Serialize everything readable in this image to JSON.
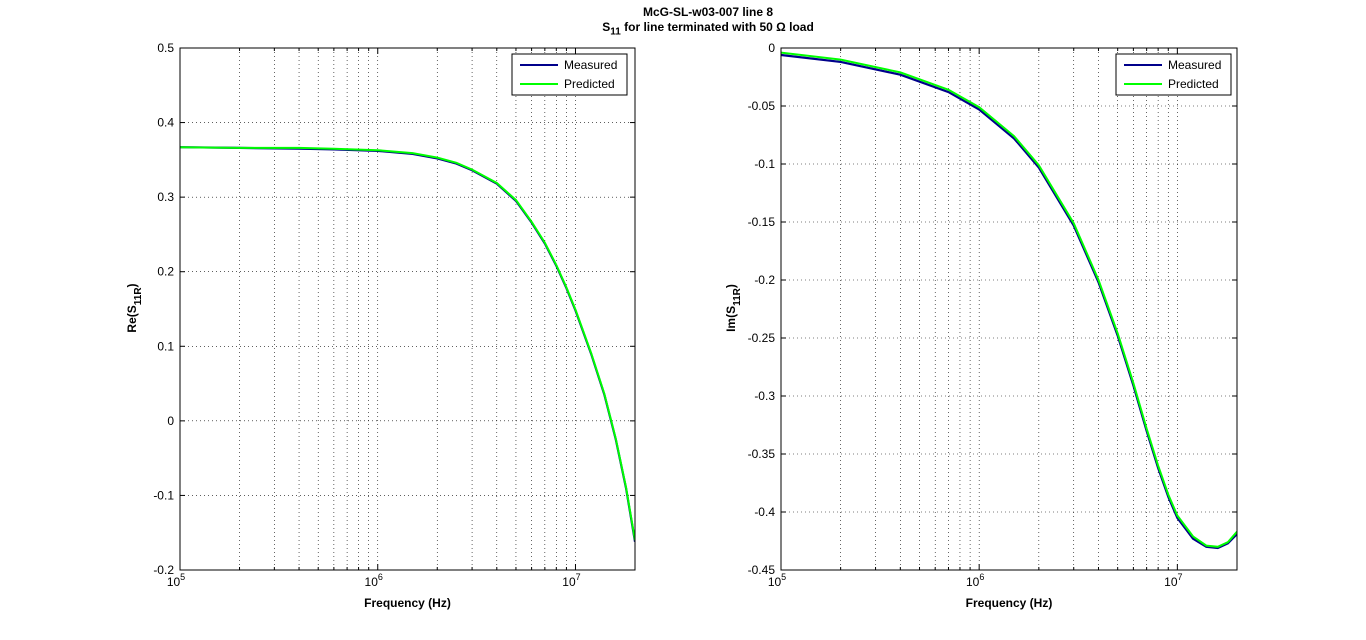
{
  "figure": {
    "title_line1": "McG-SL-w03-007 line 8",
    "title_line2_main": "S",
    "title_line2_sub": "11",
    "title_line2_rest": " for line terminated with 50 Ω load"
  },
  "colors": {
    "measured": "#00008b",
    "predicted": "#00ff00",
    "grid": "#000000"
  },
  "chart_data": [
    {
      "type": "line",
      "xlabel": "Frequency (Hz)",
      "ylabel_main": "Re(S",
      "ylabel_sub": "11R",
      "ylabel_end": ")",
      "xscale": "log",
      "xlim": [
        100000,
        20000000
      ],
      "ylim": [
        -0.2,
        0.5
      ],
      "yticks": [
        "-0.2",
        "-0.1",
        "0",
        "0.1",
        "0.2",
        "0.3",
        "0.4",
        "0.5"
      ],
      "xtick_labels": [
        "10^5",
        "10^6",
        "10^7"
      ],
      "grid": true,
      "legend_position": "top-right",
      "legend": [
        "Measured",
        "Predicted"
      ],
      "series": [
        {
          "name": "Measured",
          "x": [
            100000,
            200000,
            400000,
            600000,
            1000000,
            1500000,
            2000000,
            2500000,
            3000000,
            4000000,
            5000000,
            6000000,
            7000000,
            8000000,
            9000000,
            10000000,
            12000000,
            14000000,
            16000000,
            18000000,
            20000000
          ],
          "y": [
            0.367,
            0.366,
            0.365,
            0.364,
            0.362,
            0.358,
            0.352,
            0.345,
            0.336,
            0.318,
            0.295,
            0.266,
            0.238,
            0.208,
            0.178,
            0.148,
            0.09,
            0.035,
            -0.025,
            -0.09,
            -0.162
          ]
        },
        {
          "name": "Predicted",
          "x": [
            100000,
            200000,
            400000,
            600000,
            1000000,
            1500000,
            2000000,
            2500000,
            3000000,
            4000000,
            5000000,
            6000000,
            7000000,
            8000000,
            9000000,
            10000000,
            12000000,
            14000000,
            16000000,
            18000000,
            20000000
          ],
          "y": [
            0.367,
            0.366,
            0.366,
            0.365,
            0.363,
            0.359,
            0.353,
            0.346,
            0.337,
            0.319,
            0.296,
            0.267,
            0.239,
            0.209,
            0.179,
            0.149,
            0.091,
            0.036,
            -0.024,
            -0.089,
            -0.16
          ]
        }
      ]
    },
    {
      "type": "line",
      "xlabel": "Frequency (Hz)",
      "ylabel_main": "Im(S",
      "ylabel_sub": "11R",
      "ylabel_end": ")",
      "xscale": "log",
      "xlim": [
        100000,
        20000000
      ],
      "ylim": [
        -0.45,
        0
      ],
      "yticks": [
        "-0.45",
        "-0.4",
        "-0.35",
        "-0.3",
        "-0.25",
        "-0.2",
        "-0.15",
        "-0.1",
        "-0.05",
        "0"
      ],
      "xtick_labels": [
        "10^5",
        "10^6",
        "10^7"
      ],
      "grid": true,
      "legend_position": "top-right",
      "legend": [
        "Measured",
        "Predicted"
      ],
      "series": [
        {
          "name": "Measured",
          "x": [
            100000,
            200000,
            400000,
            700000,
            1000000,
            1500000,
            2000000,
            3000000,
            4000000,
            5000000,
            6000000,
            7000000,
            8000000,
            9000000,
            10000000,
            12000000,
            14000000,
            16000000,
            18000000,
            20000000
          ],
          "y": [
            -0.006,
            -0.012,
            -0.023,
            -0.038,
            -0.053,
            -0.078,
            -0.103,
            -0.153,
            -0.202,
            -0.248,
            -0.291,
            -0.33,
            -0.362,
            -0.387,
            -0.405,
            -0.423,
            -0.43,
            -0.431,
            -0.427,
            -0.419
          ]
        },
        {
          "name": "Predicted",
          "x": [
            100000,
            200000,
            400000,
            700000,
            1000000,
            1500000,
            2000000,
            3000000,
            4000000,
            5000000,
            6000000,
            7000000,
            8000000,
            9000000,
            10000000,
            12000000,
            14000000,
            16000000,
            18000000,
            20000000
          ],
          "y": [
            -0.004,
            -0.01,
            -0.021,
            -0.036,
            -0.051,
            -0.076,
            -0.101,
            -0.151,
            -0.2,
            -0.246,
            -0.289,
            -0.328,
            -0.36,
            -0.385,
            -0.403,
            -0.421,
            -0.429,
            -0.43,
            -0.426,
            -0.417
          ]
        }
      ]
    }
  ]
}
